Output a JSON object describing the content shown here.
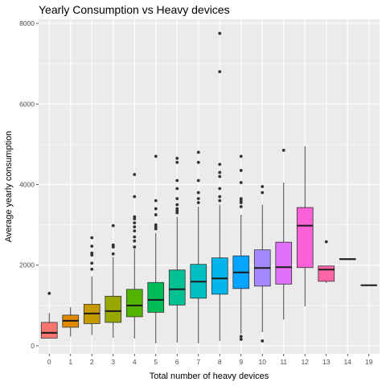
{
  "chart_data": {
    "type": "boxplot",
    "title": "Yearly Consumption vs Heavy devices",
    "xlabel": "Total number of heavy devices",
    "ylabel": "Average yearly consumption",
    "ylim": [
      -200,
      8100
    ],
    "yticks": [
      0,
      2000,
      4000,
      6000,
      8000
    ],
    "grid": true,
    "legend": "none",
    "background_color": "#ebebeb",
    "grid_color": "#ffffff",
    "categories": [
      "0",
      "1",
      "2",
      "3",
      "4",
      "5",
      "6",
      "7",
      "8",
      "9",
      "10",
      "11",
      "12",
      "13",
      "14",
      "19"
    ],
    "colors": [
      "#f8766d",
      "#e38900",
      "#c49a00",
      "#99a800",
      "#53b400",
      "#00bc56",
      "#00c094",
      "#00bfc4",
      "#00b6eb",
      "#06a4ff",
      "#a58aff",
      "#df70f8",
      "#fb61d7",
      "#ff66a8",
      "#d89000",
      "#a3a500"
    ],
    "boxes": [
      {
        "category": "0",
        "min": 180,
        "q1": 190,
        "median": 320,
        "q3": 580,
        "max": 810,
        "outliers": [
          1300
        ]
      },
      {
        "category": "1",
        "min": 230,
        "q1": 460,
        "median": 620,
        "q3": 760,
        "max": 960,
        "outliers": []
      },
      {
        "category": "2",
        "min": 270,
        "q1": 550,
        "median": 800,
        "q3": 1030,
        "max": 1720,
        "outliers": [
          1900,
          2050,
          2250,
          2300,
          2470,
          2680
        ]
      },
      {
        "category": "3",
        "min": 200,
        "q1": 580,
        "median": 860,
        "q3": 1230,
        "max": 2200,
        "outliers": [
          2280,
          2450,
          2500,
          2980
        ]
      },
      {
        "category": "4",
        "min": 180,
        "q1": 720,
        "median": 1000,
        "q3": 1400,
        "max": 2400,
        "outliers": [
          2450,
          2600,
          2700,
          2850,
          2950,
          3050,
          3150,
          3200,
          3700,
          4250
        ]
      },
      {
        "category": "5",
        "min": 60,
        "q1": 830,
        "median": 1140,
        "q3": 1570,
        "max": 2800,
        "outliers": [
          2900,
          2950,
          3000,
          3250,
          3400,
          3600,
          4700
        ]
      },
      {
        "category": "6",
        "min": 80,
        "q1": 1010,
        "median": 1400,
        "q3": 1880,
        "max": 3200,
        "outliers": [
          3300,
          3350,
          3400,
          3500,
          3650,
          3900,
          4100,
          4550,
          4650
        ]
      },
      {
        "category": "7",
        "min": 60,
        "q1": 1180,
        "median": 1590,
        "q3": 2020,
        "max": 3450,
        "outliers": [
          3550,
          3650,
          3800,
          4100,
          4550,
          4800
        ]
      },
      {
        "category": "8",
        "min": 120,
        "q1": 1280,
        "median": 1670,
        "q3": 2180,
        "max": 3500,
        "outliers": [
          3600,
          3700,
          3900,
          4200,
          4300,
          4500,
          6800,
          7750
        ]
      },
      {
        "category": "9",
        "min": 300,
        "q1": 1420,
        "median": 1820,
        "q3": 2230,
        "max": 3250,
        "outliers": [
          160,
          230,
          3450,
          3550,
          3600,
          3650,
          4050,
          4350,
          4700
        ]
      },
      {
        "category": "10",
        "min": 340,
        "q1": 1480,
        "median": 1930,
        "q3": 2380,
        "max": 3500,
        "outliers": [
          120,
          3800,
          3950
        ]
      },
      {
        "category": "11",
        "min": 650,
        "q1": 1530,
        "median": 1950,
        "q3": 2570,
        "max": 4050,
        "outliers": [
          4850
        ]
      },
      {
        "category": "12",
        "min": 980,
        "q1": 1940,
        "median": 2980,
        "q3": 3430,
        "max": 4950,
        "outliers": []
      },
      {
        "category": "13",
        "min": 1560,
        "q1": 1600,
        "median": 1890,
        "q3": 1980,
        "max": 1980,
        "outliers": [
          2580
        ]
      },
      {
        "category": "14",
        "min": 2140,
        "q1": 2140,
        "median": 2150,
        "q3": 2160,
        "max": 2160,
        "outliers": []
      },
      {
        "category": "19",
        "min": 1500,
        "q1": 1500,
        "median": 1500,
        "q3": 1510,
        "max": 1510,
        "outliers": []
      }
    ]
  }
}
